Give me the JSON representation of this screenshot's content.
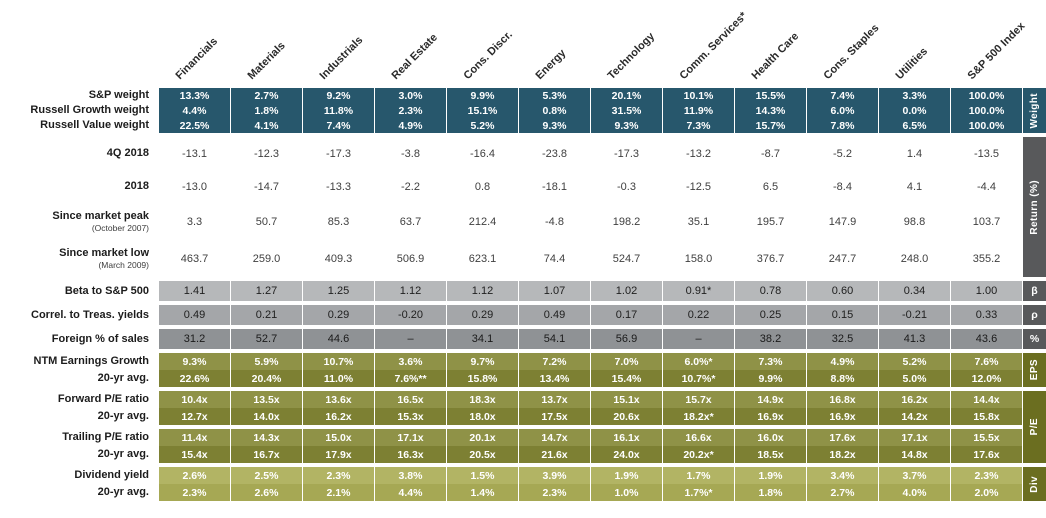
{
  "chart_data": {
    "type": "table",
    "title": "S&P 500 sector characteristics table",
    "columns": [
      "Financials",
      "Materials",
      "Industrials",
      "Real Estate",
      "Cons. Discr.",
      "Energy",
      "Technology",
      "Comm. Services*",
      "Health Care",
      "Cons. Staples",
      "Utilities",
      "S&P 500 Index"
    ],
    "sections": [
      {
        "id": "weight",
        "strip": {
          "label": "Weight",
          "color": "#27576c",
          "vertical": true
        },
        "rows": [
          {
            "label": "S&P weight",
            "variant": "blue",
            "strong": true,
            "values": [
              "13.3%",
              "2.7%",
              "9.2%",
              "3.0%",
              "9.9%",
              "5.3%",
              "20.1%",
              "10.1%",
              "15.5%",
              "7.4%",
              "3.3%",
              "100.0%"
            ]
          },
          {
            "label": "Russell Growth weight",
            "variant": "blue",
            "strong": true,
            "values": [
              "4.4%",
              "1.8%",
              "11.8%",
              "2.3%",
              "15.1%",
              "0.8%",
              "31.5%",
              "11.9%",
              "14.3%",
              "6.0%",
              "0.0%",
              "100.0%"
            ]
          },
          {
            "label": "Russell Value weight",
            "variant": "blue",
            "strong": true,
            "values": [
              "22.5%",
              "4.1%",
              "7.4%",
              "4.9%",
              "5.2%",
              "9.3%",
              "9.3%",
              "7.3%",
              "15.7%",
              "7.8%",
              "6.5%",
              "100.0%"
            ]
          }
        ]
      },
      {
        "id": "return",
        "strip": {
          "label": "Return (%)",
          "color": "#58595b",
          "vertical": true
        },
        "rows": [
          {
            "label": "4Q 2018",
            "variant": "white",
            "strong": false,
            "values": [
              "-13.1",
              "-12.3",
              "-17.3",
              "-3.8",
              "-16.4",
              "-23.8",
              "-17.3",
              "-13.2",
              "-8.7",
              "-5.2",
              "1.4",
              "-13.5"
            ]
          },
          {
            "label": "2018",
            "variant": "white",
            "strong": false,
            "values": [
              "-13.0",
              "-14.7",
              "-13.3",
              "-2.2",
              "0.8",
              "-18.1",
              "-0.3",
              "-12.5",
              "6.5",
              "-8.4",
              "4.1",
              "-4.4"
            ]
          },
          {
            "label": "Since market peak",
            "sublabel": "(October 2007)",
            "variant": "white",
            "tall": true,
            "strong": false,
            "values": [
              "3.3",
              "50.7",
              "85.3",
              "63.7",
              "212.4",
              "-4.8",
              "198.2",
              "35.1",
              "195.7",
              "147.9",
              "98.8",
              "103.7"
            ]
          },
          {
            "label": "Since market low",
            "sublabel": "(March 2009)",
            "variant": "white",
            "tall": true,
            "strong": false,
            "values": [
              "463.7",
              "259.0",
              "409.3",
              "506.9",
              "623.1",
              "74.4",
              "524.7",
              "158.0",
              "376.7",
              "247.7",
              "248.0",
              "355.2"
            ]
          }
        ]
      },
      {
        "id": "beta",
        "strip": {
          "label": "β",
          "color": "#58595b",
          "vertical": false
        },
        "rows": [
          {
            "label": "Beta to S&P 500",
            "variant": "gray-light",
            "strong": false,
            "values": [
              "1.41",
              "1.27",
              "1.25",
              "1.12",
              "1.12",
              "1.07",
              "1.02",
              "0.91*",
              "0.78",
              "0.60",
              "0.34",
              "1.00"
            ]
          }
        ]
      },
      {
        "id": "correlation",
        "strip": {
          "label": "ρ",
          "color": "#58595b",
          "vertical": false
        },
        "rows": [
          {
            "label": "Correl. to Treas. yields",
            "variant": "gray-mid",
            "strong": false,
            "values": [
              "0.49",
              "0.21",
              "0.29",
              "-0.20",
              "0.29",
              "0.49",
              "0.17",
              "0.22",
              "0.25",
              "0.15",
              "-0.21",
              "0.33"
            ]
          }
        ]
      },
      {
        "id": "foreign-sales",
        "strip": {
          "label": "%",
          "color": "#58595b",
          "vertical": false
        },
        "rows": [
          {
            "label": "Foreign % of sales",
            "variant": "gray-dark",
            "strong": false,
            "values": [
              "31.2",
              "52.7",
              "44.6",
              "–",
              "34.1",
              "54.1",
              "56.9",
              "–",
              "38.2",
              "32.5",
              "41.3",
              "43.6"
            ]
          }
        ]
      },
      {
        "id": "eps",
        "strip": {
          "label": "EPS",
          "color": "#6b6e20",
          "vertical": true
        },
        "rows": [
          {
            "label": "NTM Earnings Growth",
            "variant": "olive-dark",
            "strong": true,
            "values": [
              "9.3%",
              "5.9%",
              "10.7%",
              "3.6%",
              "9.7%",
              "7.2%",
              "7.0%",
              "6.0%*",
              "7.3%",
              "4.9%",
              "5.2%",
              "7.6%"
            ]
          },
          {
            "label": "20-yr avg.",
            "variant": "olive-darker",
            "strong": true,
            "values": [
              "22.6%",
              "20.4%",
              "11.0%",
              "7.6%**",
              "15.8%",
              "13.4%",
              "15.4%",
              "10.7%*",
              "9.9%",
              "8.8%",
              "5.0%",
              "12.0%"
            ]
          }
        ]
      },
      {
        "id": "pe",
        "strip": {
          "label": "P/E",
          "color": "#6b6e20",
          "vertical": true
        },
        "rows": [
          {
            "label": "Forward P/E ratio",
            "variant": "olive-dark",
            "strong": true,
            "values": [
              "10.4x",
              "13.5x",
              "13.6x",
              "16.5x",
              "18.3x",
              "13.7x",
              "15.1x",
              "15.7x",
              "14.9x",
              "16.8x",
              "16.2x",
              "14.4x"
            ]
          },
          {
            "label": "20-yr avg.",
            "variant": "olive-darker",
            "strong": true,
            "values": [
              "12.7x",
              "14.0x",
              "16.2x",
              "15.3x",
              "18.0x",
              "17.5x",
              "20.6x",
              "18.2x*",
              "16.9x",
              "16.9x",
              "14.2x",
              "15.8x"
            ]
          },
          {
            "spacer": true
          },
          {
            "label": "Trailing P/E ratio",
            "variant": "olive-dark",
            "strong": true,
            "values": [
              "11.4x",
              "14.3x",
              "15.0x",
              "17.1x",
              "20.1x",
              "14.7x",
              "16.1x",
              "16.6x",
              "16.0x",
              "17.6x",
              "17.1x",
              "15.5x"
            ]
          },
          {
            "label": "20-yr avg.",
            "variant": "olive-darker",
            "strong": true,
            "values": [
              "15.4x",
              "16.7x",
              "17.9x",
              "16.3x",
              "20.5x",
              "21.6x",
              "24.0x",
              "20.2x*",
              "18.5x",
              "18.2x",
              "14.8x",
              "17.6x"
            ]
          }
        ]
      },
      {
        "id": "dividend",
        "strip": {
          "label": "Div",
          "color": "#6b6e20",
          "vertical": true
        },
        "rows": [
          {
            "label": "Dividend yield",
            "variant": "olive-light",
            "strong": true,
            "values": [
              "2.6%",
              "2.5%",
              "2.3%",
              "3.8%",
              "1.5%",
              "3.9%",
              "1.9%",
              "1.7%",
              "1.9%",
              "3.4%",
              "3.7%",
              "2.3%"
            ]
          },
          {
            "label": "20-yr avg.",
            "variant": "olive-lighter",
            "strong": true,
            "values": [
              "2.3%",
              "2.6%",
              "2.1%",
              "4.4%",
              "1.4%",
              "2.3%",
              "1.0%",
              "1.7%*",
              "1.8%",
              "2.7%",
              "4.0%",
              "2.0%"
            ]
          }
        ]
      }
    ]
  }
}
